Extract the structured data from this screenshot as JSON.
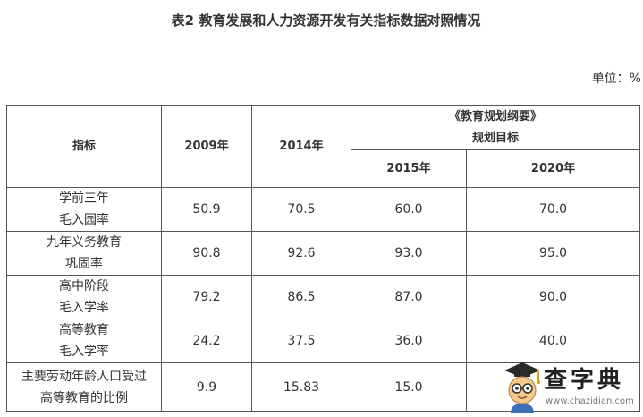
{
  "title": "表2 教育发展和人力资源开发有关指标数据对照情况",
  "unit": "单位：%",
  "table": {
    "header": {
      "indicator": "指标",
      "y2009": "2009年",
      "y2014": "2014年",
      "plan_line1": "《教育规划纲要》",
      "plan_line2": "规划目标",
      "y2015": "2015年",
      "y2020": "2020年"
    },
    "rows": [
      {
        "label1": "学前三年",
        "label2": "毛入园率",
        "v2009": "50.9",
        "v2014": "70.5",
        "v2015": "60.0",
        "v2020": "70.0"
      },
      {
        "label1": "九年义务教育",
        "label2": "巩固率",
        "v2009": "90.8",
        "v2014": "92.6",
        "v2015": "93.0",
        "v2020": "95.0"
      },
      {
        "label1": "高中阶段",
        "label2": "毛入学率",
        "v2009": "79.2",
        "v2014": "86.5",
        "v2015": "87.0",
        "v2020": "90.0"
      },
      {
        "label1": "高等教育",
        "label2": "毛入学率",
        "v2009": "24.2",
        "v2014": "37.5",
        "v2015": "36.0",
        "v2020": "40.0"
      },
      {
        "label1": "主要劳动年龄人口受过",
        "label2": "高等教育的比例",
        "v2009": "9.9",
        "v2014": "15.83",
        "v2015": "15.0",
        "v2020": ""
      }
    ]
  },
  "watermark": {
    "text": "查字典",
    "url": "www.chazidian.com"
  }
}
